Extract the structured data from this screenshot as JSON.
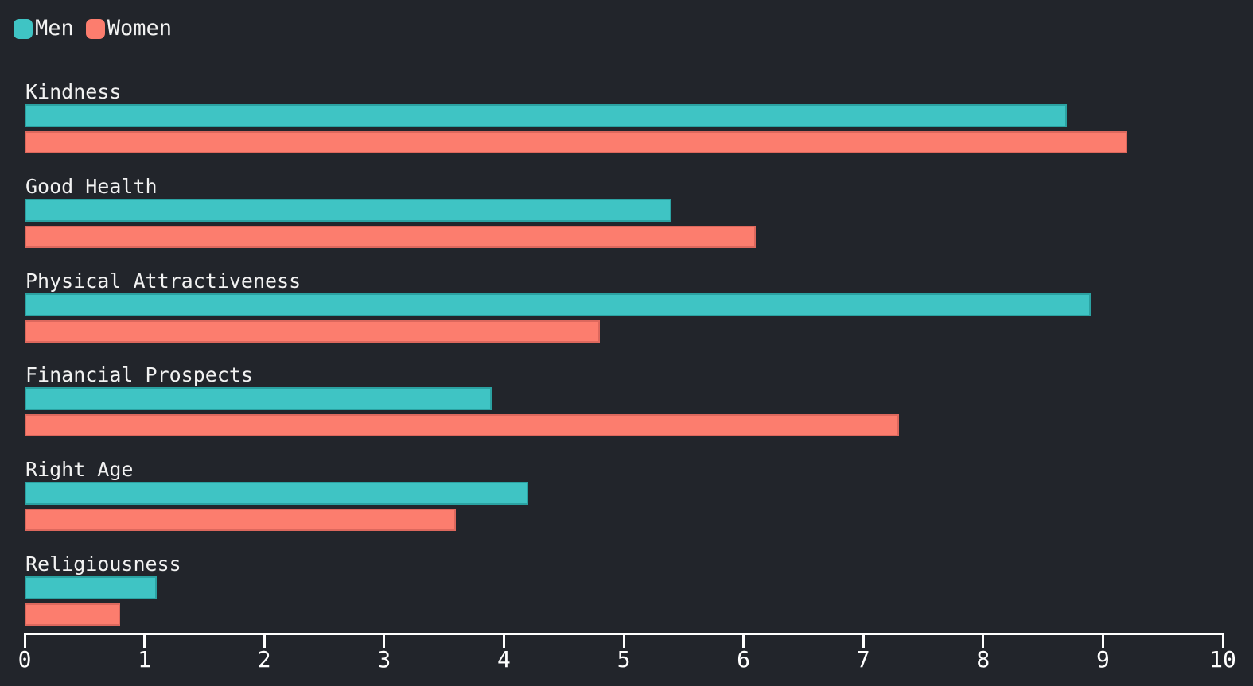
{
  "colors": {
    "background": "#22252b",
    "men": "#3fc4c4",
    "men_edge": "#2ba2a2",
    "women": "#fc7d6e",
    "women_edge": "#dd685d",
    "text": "#f2f2f2",
    "axis": "#ffffff"
  },
  "legend": [
    {
      "label": "Men",
      "color_key": "men"
    },
    {
      "label": "Women",
      "color_key": "women"
    }
  ],
  "chart_data": {
    "type": "bar",
    "orientation": "horizontal",
    "title": "",
    "categories": [
      "Kindness",
      "Good Health",
      "Physical Attractiveness",
      "Financial Prospects",
      "Right Age",
      "Religiousness"
    ],
    "series": [
      {
        "name": "Men",
        "values": [
          8.7,
          5.4,
          8.9,
          3.9,
          4.2,
          1.1
        ]
      },
      {
        "name": "Women",
        "values": [
          9.2,
          6.1,
          4.8,
          7.3,
          3.6,
          0.8
        ]
      }
    ],
    "xlim": [
      0,
      10
    ],
    "x_ticks": [
      "0",
      "1",
      "2",
      "3",
      "4",
      "5",
      "6",
      "7",
      "8",
      "9",
      "10"
    ],
    "grid": false,
    "legend_position": "top-left"
  }
}
